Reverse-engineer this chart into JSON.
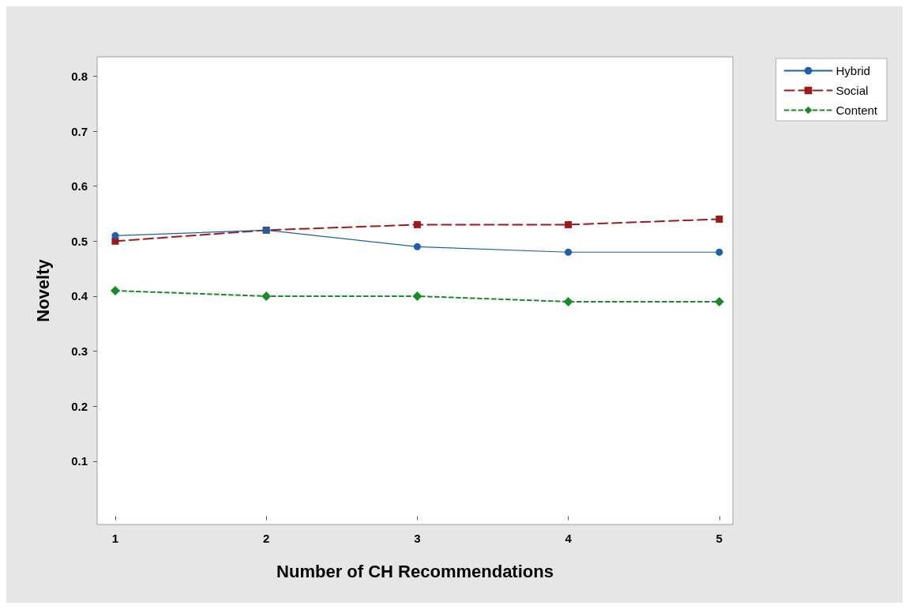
{
  "chart_data": {
    "type": "line",
    "xlabel": "Number of CH Recommendations",
    "ylabel": "Novelty",
    "x": [
      1,
      2,
      3,
      4,
      5
    ],
    "series": [
      {
        "name": "Hybrid",
        "color": "#1f5fa8",
        "marker": "circle",
        "line_style": "solid",
        "values": [
          0.51,
          0.52,
          0.49,
          0.48,
          0.48
        ]
      },
      {
        "name": "Social",
        "color": "#9b1b1b",
        "marker": "square",
        "line_style": "dashed",
        "values": [
          0.5,
          0.52,
          0.53,
          0.53,
          0.54
        ]
      },
      {
        "name": "Content",
        "color": "#1a8a2a",
        "marker": "diamond",
        "line_style": "dotted",
        "values": [
          0.41,
          0.4,
          0.4,
          0.39,
          0.39
        ]
      }
    ],
    "xlim": [
      0.88,
      5.09
    ],
    "xticks": [
      1,
      2,
      3,
      4,
      5
    ],
    "ylim": [
      -0.015,
      0.835
    ],
    "yticks": [
      0.1,
      0.2,
      0.3,
      0.4,
      0.5,
      0.6,
      0.7,
      0.8
    ],
    "grid": false,
    "legend": "top right"
  }
}
